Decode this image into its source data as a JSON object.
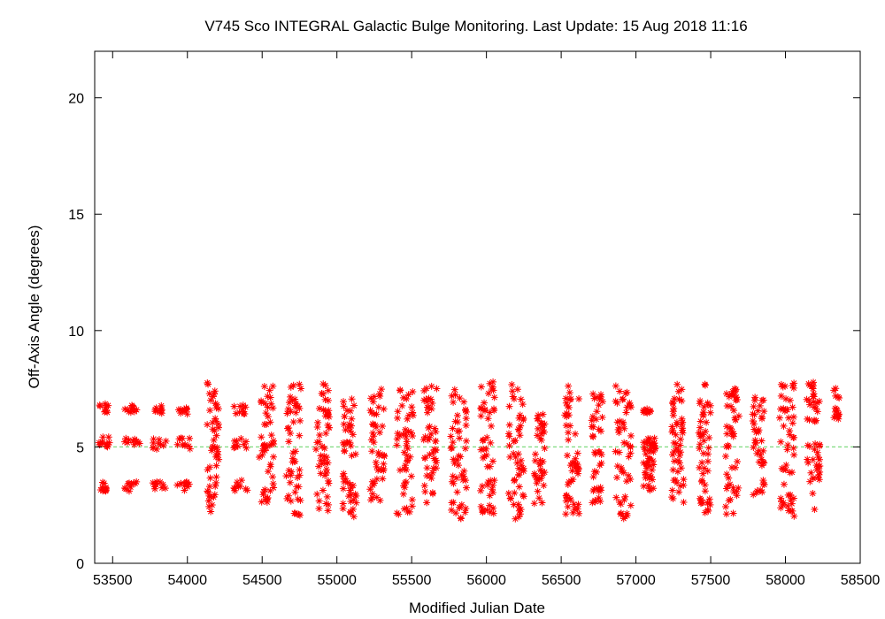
{
  "chart_data": {
    "type": "scatter",
    "title": "V745 Sco   INTEGRAL Galactic Bulge Monitoring.  Last Update: 15 Aug 2018 11:16",
    "xlabel": "Modified Julian Date",
    "ylabel": "Off-Axis Angle (degrees)",
    "xlim": [
      53380,
      58500
    ],
    "ylim": [
      0,
      22
    ],
    "x_ticks": [
      53500,
      54000,
      54500,
      55000,
      55500,
      56000,
      56500,
      57000,
      57500,
      58000,
      58500
    ],
    "y_ticks": [
      0,
      5,
      10,
      15,
      20
    ],
    "reference_line": {
      "y": 5.0,
      "style": "dashed",
      "color": "#7fd97f"
    },
    "marker": "asterisk",
    "series_color": "#ff0000",
    "grid": false,
    "legend": "none",
    "clusters": [
      {
        "x": [
          53400,
          53480
        ],
        "bands": [
          [
            6.4,
            6.85
          ],
          [
            4.9,
            5.5
          ],
          [
            3.1,
            3.5
          ]
        ]
      },
      {
        "x": [
          53580,
          53680
        ],
        "bands": [
          [
            6.4,
            6.8
          ],
          [
            4.9,
            5.4
          ],
          [
            3.1,
            3.5
          ]
        ]
      },
      {
        "x": [
          53760,
          53860
        ],
        "bands": [
          [
            6.4,
            6.8
          ],
          [
            4.9,
            5.4
          ],
          [
            3.1,
            3.5
          ]
        ]
      },
      {
        "x": [
          53930,
          54020
        ],
        "bands": [
          [
            6.4,
            6.8
          ],
          [
            4.9,
            5.4
          ],
          [
            3.1,
            3.5
          ]
        ]
      },
      {
        "x": [
          54130,
          54210
        ],
        "range": [
          2.2,
          7.8
        ]
      },
      {
        "x": [
          54310,
          54410
        ],
        "bands": [
          [
            6.4,
            6.8
          ],
          [
            4.9,
            5.4
          ],
          [
            3.1,
            3.6
          ]
        ]
      },
      {
        "x": [
          54480,
          54580
        ],
        "range": [
          2.6,
          7.8
        ]
      },
      {
        "x": [
          54660,
          54760
        ],
        "range": [
          2.0,
          7.7
        ]
      },
      {
        "x": [
          54860,
          54950
        ],
        "range": [
          2.2,
          7.9
        ]
      },
      {
        "x": [
          55040,
          55140
        ],
        "range": [
          2.0,
          7.4
        ]
      },
      {
        "x": [
          55220,
          55320
        ],
        "range": [
          2.6,
          7.7
        ]
      },
      {
        "x": [
          55400,
          55510
        ],
        "range": [
          1.9,
          7.6
        ]
      },
      {
        "x": [
          55580,
          55670
        ],
        "range": [
          2.6,
          7.8
        ]
      },
      {
        "x": [
          55760,
          55870
        ],
        "range": [
          1.9,
          7.7
        ]
      },
      {
        "x": [
          55960,
          56060
        ],
        "range": [
          2.1,
          7.9
        ]
      },
      {
        "x": [
          56140,
          56250
        ],
        "range": [
          1.9,
          7.7
        ]
      },
      {
        "x": [
          56320,
          56390
        ],
        "range": [
          2.5,
          6.8
        ]
      },
      {
        "x": [
          56520,
          56620
        ],
        "range": [
          2.1,
          7.8
        ]
      },
      {
        "x": [
          56700,
          56780
        ],
        "range": [
          2.6,
          7.3
        ]
      },
      {
        "x": [
          56860,
          56970
        ],
        "range": [
          1.9,
          7.7
        ]
      },
      {
        "x": [
          57050,
          57130
        ],
        "bands": [
          [
            6.4,
            6.7
          ],
          [
            3.1,
            5.5
          ]
        ]
      },
      {
        "x": [
          57240,
          57320
        ],
        "range": [
          2.1,
          7.7
        ]
      },
      {
        "x": [
          57420,
          57500
        ],
        "range": [
          2.1,
          7.7
        ]
      },
      {
        "x": [
          57600,
          57690
        ],
        "range": [
          2.1,
          7.5
        ]
      },
      {
        "x": [
          57780,
          57860
        ],
        "range": [
          2.9,
          7.3
        ]
      },
      {
        "x": [
          57960,
          58060
        ],
        "range": [
          2.0,
          7.8
        ]
      },
      {
        "x": [
          58140,
          58230
        ],
        "range": [
          2.3,
          7.8
        ]
      },
      {
        "x": [
          58320,
          58360
        ],
        "range": [
          6.1,
          7.9
        ]
      }
    ]
  }
}
